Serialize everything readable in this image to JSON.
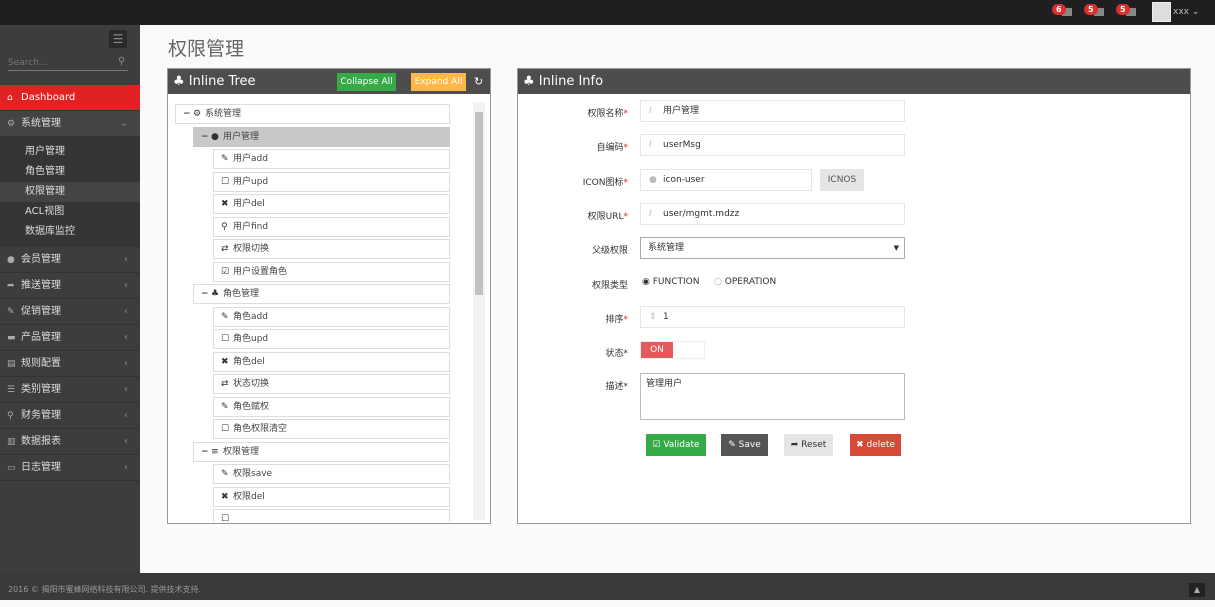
{
  "topbar": {
    "notifications": [
      {
        "count": "6",
        "icon": "bell-icon"
      },
      {
        "count": "5",
        "icon": "envelope-icon"
      },
      {
        "count": "5",
        "icon": "tasks-icon"
      }
    ],
    "user": "xxx"
  },
  "sidebar": {
    "search_placeholder": "Search...",
    "items": [
      {
        "label": "Dashboard",
        "icon": "home-icon",
        "glyph": "⌂",
        "state": "active"
      },
      {
        "label": "系统管理",
        "icon": "cogs-icon",
        "glyph": "⚙",
        "state": "open",
        "children": [
          {
            "label": "用户管理"
          },
          {
            "label": "角色管理"
          },
          {
            "label": "权限管理",
            "current": true
          },
          {
            "label": "ACL视图"
          },
          {
            "label": "数据库监控"
          }
        ]
      },
      {
        "label": "会员管理",
        "icon": "user-icon",
        "glyph": "●"
      },
      {
        "label": "推送管理",
        "icon": "share-icon",
        "glyph": "➦"
      },
      {
        "label": "促销管理",
        "icon": "magic-icon",
        "glyph": "✎"
      },
      {
        "label": "产品管理",
        "icon": "folder-icon",
        "glyph": "▬"
      },
      {
        "label": "规则配置",
        "icon": "list-icon",
        "glyph": "▤"
      },
      {
        "label": "类别管理",
        "icon": "tags-icon",
        "glyph": "☰"
      },
      {
        "label": "财务管理",
        "icon": "search-icon",
        "glyph": "⚲"
      },
      {
        "label": "数据报表",
        "icon": "bar-chart-icon",
        "glyph": "▥"
      },
      {
        "label": "日志管理",
        "icon": "credit-card-icon",
        "glyph": "▭"
      }
    ]
  },
  "page_title": "权限管理",
  "tree_panel": {
    "title": "Inline Tree",
    "collapse_label": "Collapse All",
    "expand_label": "Expand All",
    "nodes": [
      {
        "label": "系统管理",
        "level": 0,
        "icon": "cogs-icon",
        "glyph": "⚙",
        "toggle": "−"
      },
      {
        "label": "用户管理",
        "level": 1,
        "icon": "user-icon",
        "glyph": "●",
        "toggle": "−",
        "selected": true
      },
      {
        "label": "用户add",
        "level": 2,
        "icon": "pencil-icon",
        "glyph": "✎"
      },
      {
        "label": "用户upd",
        "level": 2,
        "icon": "edit-icon",
        "glyph": "☐"
      },
      {
        "label": "用户del",
        "level": 2,
        "icon": "remove-icon",
        "glyph": "✖"
      },
      {
        "label": "用户find",
        "level": 2,
        "icon": "search-icon",
        "glyph": "⚲"
      },
      {
        "label": "权限切换",
        "level": 2,
        "icon": "retweet-icon",
        "glyph": "⇄"
      },
      {
        "label": "用户设置角色",
        "level": 2,
        "icon": "check-icon",
        "glyph": "☑"
      },
      {
        "label": "角色管理",
        "level": 1,
        "icon": "sitemap-icon",
        "glyph": "♣",
        "toggle": "−"
      },
      {
        "label": "角色add",
        "level": 2,
        "icon": "pencil-icon",
        "glyph": "✎"
      },
      {
        "label": "角色upd",
        "level": 2,
        "icon": "edit-icon",
        "glyph": "☐"
      },
      {
        "label": "角色del",
        "level": 2,
        "icon": "remove-icon",
        "glyph": "✖"
      },
      {
        "label": "状态切换",
        "level": 2,
        "icon": "retweet-icon",
        "glyph": "⇄"
      },
      {
        "label": "角色赋权",
        "level": 2,
        "icon": "pencil-icon",
        "glyph": "✎"
      },
      {
        "label": "角色权限清空",
        "level": 2,
        "icon": "checkbox-empty-icon",
        "glyph": "☐"
      },
      {
        "label": "权限管理",
        "level": 1,
        "icon": "reorder-icon",
        "glyph": "≡",
        "toggle": "−"
      },
      {
        "label": "权限save",
        "level": 2,
        "icon": "pencil-icon",
        "glyph": "✎"
      },
      {
        "label": "权限del",
        "level": 2,
        "icon": "remove-icon",
        "glyph": "✖"
      },
      {
        "label": "",
        "level": 2,
        "icon": "edit-icon",
        "glyph": "☐"
      }
    ]
  },
  "info_panel": {
    "title": "Inline Info",
    "fields": {
      "name": {
        "label": "权限名称",
        "value": "用户管理"
      },
      "code": {
        "label": "自编码",
        "value": "userMsg"
      },
      "icon": {
        "label": "ICON图标",
        "value": "icon-user",
        "button": "ICNOS"
      },
      "url": {
        "label": "权限URL",
        "value": "user/mgmt.mdzz"
      },
      "parent": {
        "label": "父级权限",
        "value": "系统管理"
      },
      "type": {
        "label": "权限类型",
        "options": [
          "FUNCTION",
          "OPERATION"
        ],
        "selected": "FUNCTION"
      },
      "order": {
        "label": "排序",
        "value": "1"
      },
      "status": {
        "label": "状态",
        "value": "ON"
      },
      "desc": {
        "label": "描述",
        "value": "管理用户"
      }
    },
    "buttons": {
      "validate": "Validate",
      "save": "Save",
      "reset": "Reset",
      "delete": "delete"
    }
  },
  "footer": {
    "text": "2016 © 揭阳市蜜蜂网络科技有限公司. 提供技术支持."
  },
  "colors": {
    "accent": "#e02222",
    "green": "#35aa47",
    "orange": "#ffb848",
    "dark": "#555555",
    "danger": "#d84a38"
  }
}
